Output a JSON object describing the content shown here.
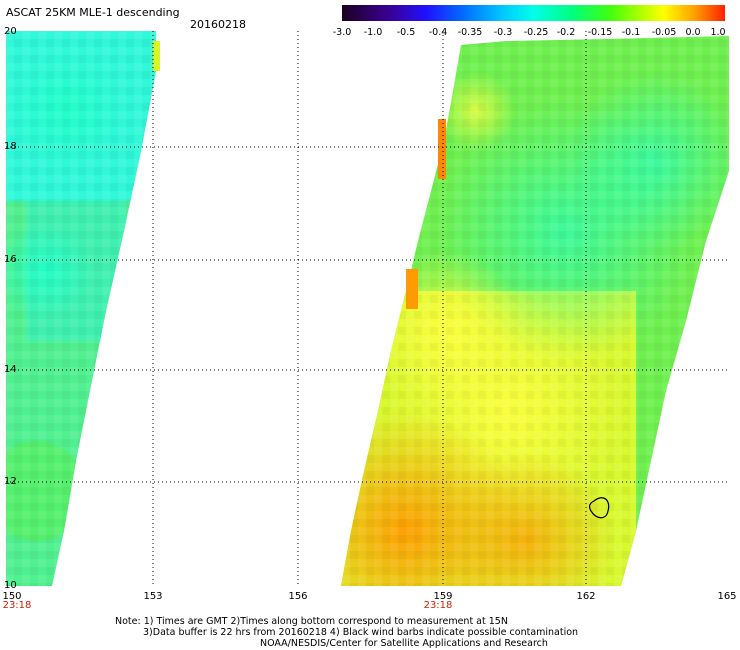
{
  "title": "ASCAT 25KM MLE-1 descending",
  "date": "20160218",
  "colorbar": {
    "labels": [
      "-3.0",
      "-1.0",
      "-0.5",
      "-0.4",
      "-0.35",
      "-0.3",
      "-0.25",
      "-0.2",
      "-0.15",
      "-0.1",
      "-0.05",
      "0.0",
      "1.0"
    ],
    "colors": [
      "#1a0020",
      "#3c006e",
      "#3a00c8",
      "#0020ff",
      "#0070ff",
      "#00b8ff",
      "#00ffe8",
      "#00ff90",
      "#30ff20",
      "#a0ff00",
      "#ffff00",
      "#ffa000",
      "#ff3000"
    ]
  },
  "map": {
    "lat_labels": [
      "20",
      "18",
      "16",
      "14",
      "12",
      "10"
    ],
    "lon_labels": [
      "150",
      "153",
      "156",
      "159",
      "162",
      "165"
    ],
    "time_labels": [
      "23:18",
      "23:18"
    ]
  },
  "notes": [
    "Note: 1) Times are GMT 2)Times along bottom correspond to measurement at 15N",
    "3)Data buffer is 22 hrs from 20160218 4) Black wind barbs indicate possible contamination",
    "NOAA/NESDIS/Center for Satellite Applications and Research"
  ]
}
